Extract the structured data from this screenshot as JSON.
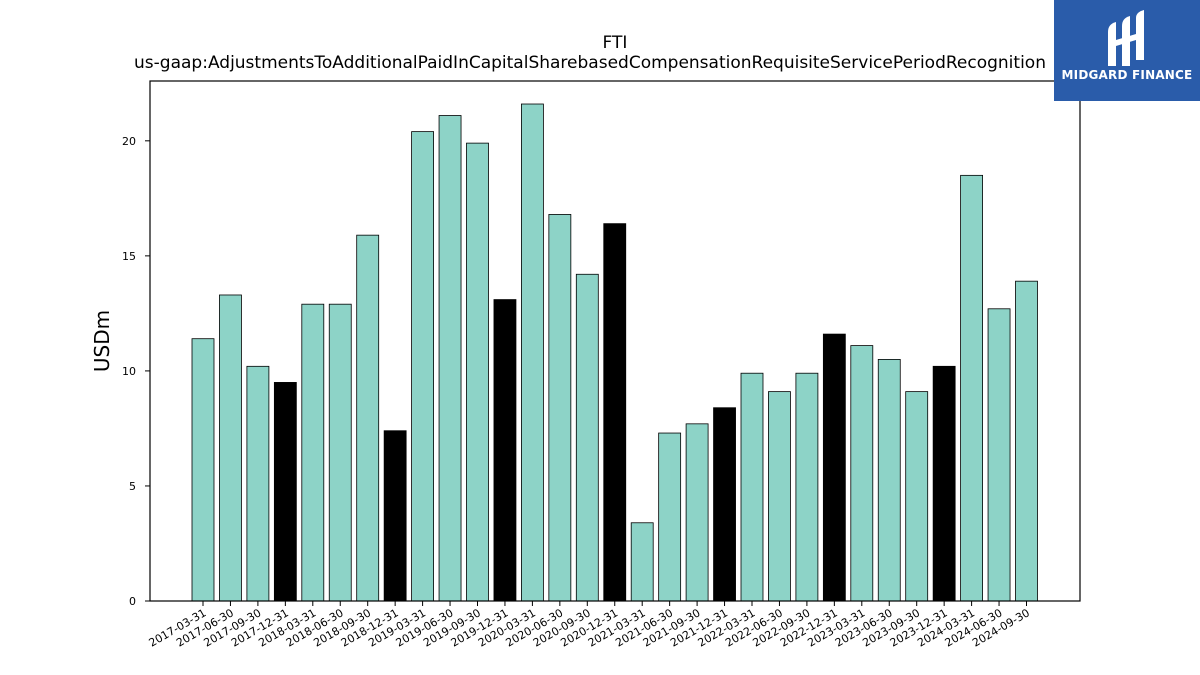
{
  "chart_data": {
    "type": "bar",
    "title": "FTI",
    "subtitle": "us-gaap:AdjustmentsToAdditionalPaidInCapitalSharebasedCompensationRequisiteServicePeriodRecognition",
    "xlabel": "",
    "ylabel": "USDm",
    "ylim": [
      0,
      22.6
    ],
    "yticks": [
      0,
      5,
      10,
      15,
      20
    ],
    "grid": false,
    "categories": [
      "2017-03-31",
      "2017-06-30",
      "2017-09-30",
      "2017-12-31",
      "2018-03-31",
      "2018-06-30",
      "2018-09-30",
      "2018-12-31",
      "2019-03-31",
      "2019-06-30",
      "2019-09-30",
      "2019-12-31",
      "2020-03-31",
      "2020-06-30",
      "2020-09-30",
      "2020-12-31",
      "2021-03-31",
      "2021-06-30",
      "2021-09-30",
      "2021-12-31",
      "2022-03-31",
      "2022-06-30",
      "2022-09-30",
      "2022-12-31",
      "2023-03-31",
      "2023-06-30",
      "2023-09-30",
      "2023-12-31",
      "2024-03-31",
      "2024-06-30",
      "2024-09-30"
    ],
    "values": [
      11.4,
      13.3,
      10.2,
      9.5,
      12.9,
      12.9,
      15.9,
      7.4,
      20.4,
      21.1,
      19.9,
      13.1,
      21.6,
      16.8,
      14.2,
      16.4,
      3.4,
      7.3,
      7.7,
      8.4,
      9.9,
      9.1,
      9.9,
      11.6,
      11.1,
      10.5,
      9.1,
      10.2,
      18.5,
      12.7,
      13.9
    ],
    "colors": {
      "quarter": "#8dd3c7",
      "year_end": "#000000",
      "edge": "#000000"
    }
  },
  "logo": {
    "text": "MIDGARD FINANCE"
  }
}
